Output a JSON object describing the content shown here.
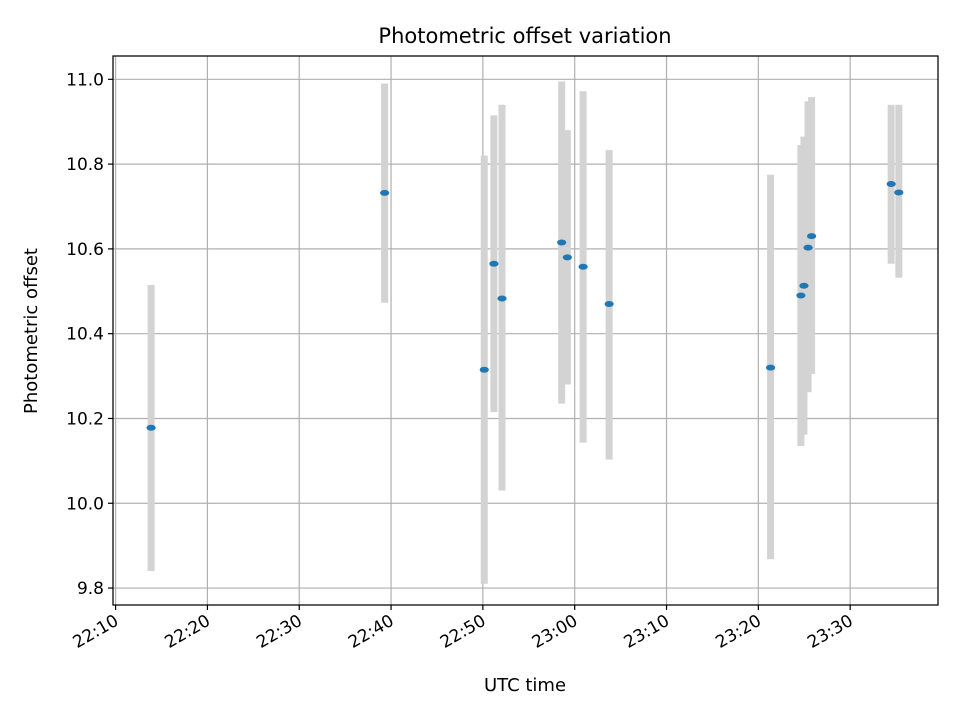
{
  "chart_data": {
    "type": "scatter",
    "title": "Photometric offset variation",
    "xlabel": "UTC time",
    "ylabel": "Photometric offset",
    "x_ticks": [
      "22:10",
      "22:20",
      "22:30",
      "22:40",
      "22:50",
      "23:00",
      "23:10",
      "23:20",
      "23:30"
    ],
    "y_ticks": [
      "9.8",
      "10.0",
      "10.2",
      "10.4",
      "10.6",
      "10.8",
      "11.0"
    ],
    "xlim": [
      "22:09:43",
      "23:39:34"
    ],
    "ylim": [
      9.76,
      11.055
    ],
    "grid": true,
    "point_color": "#1f77b4",
    "errorbar_color": "#d3d3d3",
    "points": [
      {
        "x": "22:13:52",
        "y": 10.178,
        "ylow": 9.84,
        "yhigh": 10.515
      },
      {
        "x": "22:39:18",
        "y": 10.732,
        "ylow": 10.473,
        "yhigh": 10.99
      },
      {
        "x": "22:50:09",
        "y": 10.315,
        "ylow": 9.81,
        "yhigh": 10.82
      },
      {
        "x": "22:51:12",
        "y": 10.565,
        "ylow": 10.215,
        "yhigh": 10.915
      },
      {
        "x": "22:52:05",
        "y": 10.483,
        "ylow": 10.03,
        "yhigh": 10.94
      },
      {
        "x": "22:58:35",
        "y": 10.615,
        "ylow": 10.235,
        "yhigh": 10.995
      },
      {
        "x": "22:59:12",
        "y": 10.58,
        "ylow": 10.28,
        "yhigh": 10.88
      },
      {
        "x": "23:00:55",
        "y": 10.558,
        "ylow": 10.143,
        "yhigh": 10.972
      },
      {
        "x": "23:03:45",
        "y": 10.47,
        "ylow": 10.103,
        "yhigh": 10.833
      },
      {
        "x": "23:21:20",
        "y": 10.32,
        "ylow": 9.868,
        "yhigh": 10.775
      },
      {
        "x": "23:24:38",
        "y": 10.49,
        "ylow": 10.135,
        "yhigh": 10.845
      },
      {
        "x": "23:24:58",
        "y": 10.513,
        "ylow": 10.162,
        "yhigh": 10.865
      },
      {
        "x": "23:25:25",
        "y": 10.603,
        "ylow": 10.262,
        "yhigh": 10.948
      },
      {
        "x": "23:25:48",
        "y": 10.63,
        "ylow": 10.305,
        "yhigh": 10.958
      },
      {
        "x": "23:34:28",
        "y": 10.753,
        "ylow": 10.565,
        "yhigh": 10.94
      },
      {
        "x": "23:35:18",
        "y": 10.733,
        "ylow": 10.532,
        "yhigh": 10.94
      }
    ]
  }
}
